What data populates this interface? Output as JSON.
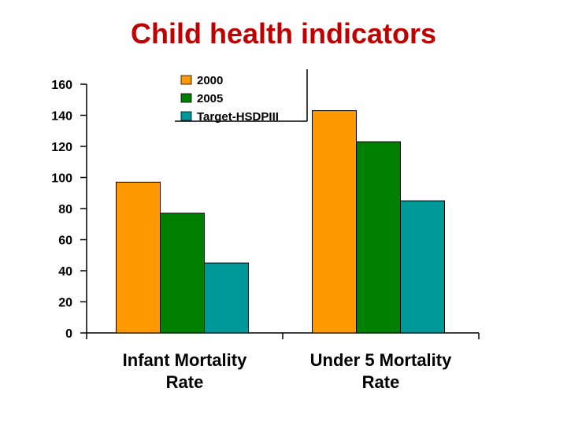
{
  "chart_data": {
    "type": "bar",
    "title": "Child health indicators",
    "categories": [
      "Infant Mortality Rate",
      "Under 5 Mortality Rate"
    ],
    "category_lines": [
      [
        "Infant Mortality",
        "Rate"
      ],
      [
        "Under 5 Mortality",
        "Rate"
      ]
    ],
    "series": [
      {
        "name": "2000",
        "color": "#ff9900",
        "values": [
          97,
          143
        ]
      },
      {
        "name": "2005",
        "color": "#008000",
        "values": [
          77,
          123
        ]
      },
      {
        "name": "Target-HSDPIII",
        "color": "#009999",
        "values": [
          45,
          85
        ]
      }
    ],
    "ylim": [
      0,
      160
    ],
    "yticks": [
      0,
      20,
      40,
      60,
      80,
      100,
      120,
      140,
      160
    ],
    "xlabel": "",
    "ylabel": "",
    "grid": false,
    "legend": "top-center"
  }
}
